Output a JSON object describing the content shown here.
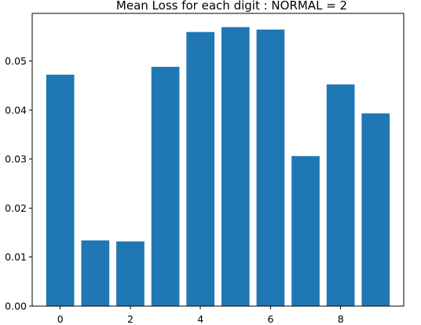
{
  "chart_data": {
    "type": "bar",
    "title": "Mean Loss for each digit : NORMAL = 2",
    "xlabel": "",
    "ylabel": "",
    "categories": [
      0,
      1,
      2,
      3,
      4,
      5,
      6,
      7,
      8,
      9
    ],
    "values": [
      0.0472,
      0.0134,
      0.0132,
      0.0488,
      0.0559,
      0.0569,
      0.0564,
      0.0306,
      0.0452,
      0.0393
    ],
    "ylim": [
      0,
      0.0597
    ],
    "xlim": [
      -0.8,
      9.8
    ],
    "yticks": [
      0.0,
      0.01,
      0.02,
      0.03,
      0.04,
      0.05
    ],
    "ytick_labels": [
      "0.00",
      "0.01",
      "0.02",
      "0.03",
      "0.04",
      "0.05"
    ],
    "xticks": [
      0,
      2,
      4,
      6,
      8
    ],
    "xtick_labels": [
      "0",
      "2",
      "4",
      "6",
      "8"
    ],
    "bar_color": "#1f77b4",
    "grid": false,
    "legend": "none"
  }
}
